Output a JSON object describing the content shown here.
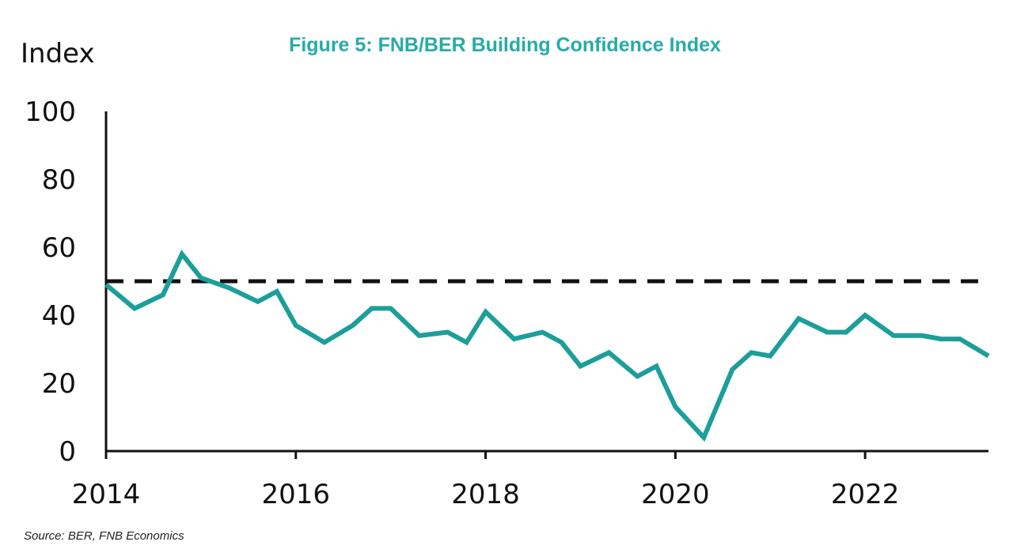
{
  "colors": {
    "series": "#1c9e9b",
    "title": "#27aba8",
    "axis": "#111111",
    "reference": "#111111"
  },
  "chart_data": {
    "type": "line",
    "title": "Figure 5: FNB/BER Building Confidence Index",
    "ylabel": "Index",
    "xlabel": "",
    "source": "Source: BER, FNB Economics",
    "xlim": [
      2014,
      2023.3
    ],
    "ylim": [
      0,
      100
    ],
    "x_ticks": [
      2014,
      2016,
      2018,
      2020,
      2022
    ],
    "x_tick_labels": [
      "2014",
      "2016",
      "2018",
      "2020",
      "2022"
    ],
    "y_ticks": [
      0,
      20,
      40,
      60,
      80,
      100
    ],
    "y_tick_labels": [
      "0",
      "20",
      "40",
      "60",
      "80",
      "100"
    ],
    "grid": false,
    "reference_lines": [
      {
        "y": 50,
        "style": "dashed"
      }
    ],
    "series": [
      {
        "x": [
          2014.0,
          2014.3,
          2014.6,
          2014.8,
          2015.0,
          2015.3,
          2015.6,
          2015.8,
          2016.0,
          2016.3,
          2016.6,
          2016.8,
          2017.0,
          2017.3,
          2017.6,
          2017.8,
          2018.0,
          2018.3,
          2018.6,
          2018.8,
          2019.0,
          2019.3,
          2019.6,
          2019.8,
          2020.0,
          2020.3,
          2020.6,
          2020.8,
          2021.0,
          2021.3,
          2021.6,
          2021.8,
          2022.0,
          2022.3,
          2022.6,
          2022.8,
          2023.0,
          2023.3
        ],
        "values": [
          49,
          42,
          46,
          58,
          51,
          48,
          44,
          47,
          37,
          32,
          37,
          42,
          42,
          34,
          35,
          32,
          41,
          33,
          35,
          32,
          25,
          29,
          22,
          25,
          13,
          4,
          24,
          29,
          28,
          39,
          35,
          35,
          40,
          34,
          34,
          33,
          33,
          28
        ]
      }
    ]
  }
}
